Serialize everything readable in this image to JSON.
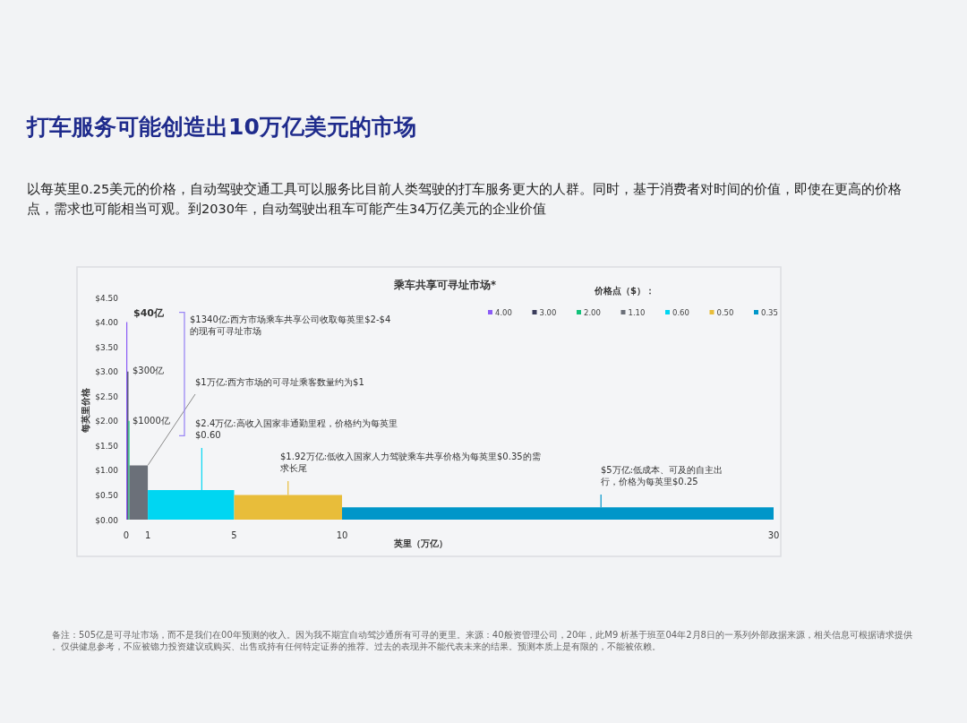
{
  "chart_data": {
    "type": "area",
    "title": "打车服务可能创造出10万亿美元的市场",
    "subtitle": "以每英里0.25美元的价格，自动驾驶交通工具可以服务比目前人类驾驶的打车服务更大的人群。同时，基于消费者对时间的价值，即使在更高的价格点，需求也可能相当可观。到2030年，自动驾驶出租车可能产生34万亿美元的企业价值",
    "xlabel": "英里（万亿）",
    "ylabel": "每英里价格",
    "legend_title": "价格点（$）：",
    "series": [
      {
        "name": "4.00",
        "color": "#8b5cf6",
        "x": [
          0,
          0.05
        ],
        "values": [
          4.0,
          4.0
        ]
      },
      {
        "name": "3.00",
        "color": "#3b3d5c",
        "x": [
          0.05,
          0.1
        ],
        "values": [
          3.0,
          3.0
        ]
      },
      {
        "name": "2.00",
        "color": "#12c27a",
        "x": [
          0.1,
          0.15
        ],
        "values": [
          2.0,
          2.0
        ]
      },
      {
        "name": "1.10",
        "color": "#6b7079",
        "x": [
          0.15,
          1
        ],
        "values": [
          1.1,
          1.1
        ]
      },
      {
        "name": "0.60",
        "color": "#00d6f2",
        "x": [
          1,
          5
        ],
        "values": [
          0.6,
          0.6
        ]
      },
      {
        "name": "0.50",
        "color": "#e8bd3a",
        "x": [
          5,
          10
        ],
        "values": [
          0.5,
          0.5
        ]
      },
      {
        "name": "0.35",
        "color": "#0096c9",
        "x": [
          10,
          30
        ],
        "values": [
          0.25,
          0.25
        ]
      }
    ],
    "xlim": [
      0,
      30
    ],
    "xticks": [
      0,
      1,
      5,
      10,
      30
    ],
    "ylim": [
      0,
      4.5
    ],
    "yticks": [
      {
        "value": 0,
        "label": "$0.00"
      },
      {
        "value": 0.5,
        "label": "$0.50"
      },
      {
        "value": 1,
        "label": "$1.00"
      },
      {
        "value": 1.5,
        "label": "$1.50"
      },
      {
        "value": 2,
        "label": "$2.00"
      },
      {
        "value": 2.5,
        "label": "$2.50"
      },
      {
        "value": 3,
        "label": "$3.00"
      },
      {
        "value": 3.5,
        "label": "$3.50"
      },
      {
        "value": 4,
        "label": "$4.00"
      },
      {
        "value": 4.5,
        "label": "$4.50"
      }
    ],
    "grid": false,
    "legend": "top right",
    "annotations": [
      "乘车共享可寻址市场*",
      "$1340亿:西方市场乘车共享公司收取每英里$2-$4的现有可寻址市场",
      {
        "text": "$40亿",
        "x": 0.025,
        "y": 4.0
      },
      {
        "text": "$300亿",
        "x": 0.075,
        "y": 3.0
      },
      {
        "text": "$1000亿",
        "x": 0.125,
        "y": 2.0
      },
      {
        "text": "$1万亿:西方市场的可寻址乘客数量约为$1",
        "x": 1,
        "y": 1.1
      },
      {
        "text": "$2.4万亿:高收入国家非通勤里程，价格约为每英里$0.60",
        "x": 3.5,
        "y": 0.6
      },
      {
        "text": "$1.92万亿:低收入国家人力驾驶乘车共享价格为每英里$0.35的需求长尾",
        "x": 7.5,
        "y": 0.5
      },
      {
        "text": "$5万亿:低成本、可及的自主出行，价格为每英里$0.25",
        "x": 22,
        "y": 0.25
      },
      "备注：505亿是可寻址市场，而不是我们在00年预测的收入。因为我不期宜自动驾沙通所有可寻的更里。来源：40般资管理公司，20年，此M9  析基于班至04年2月8日的一系列外部政据来源，相关信息可根据请求提供。仅供健息参考，不应被锪力投资建议或购买、出售或持有任何特定证券的推荐。过去的表现并不能代表未来的结果。预测本质上是有限的，不能被依赖。"
    ]
  }
}
